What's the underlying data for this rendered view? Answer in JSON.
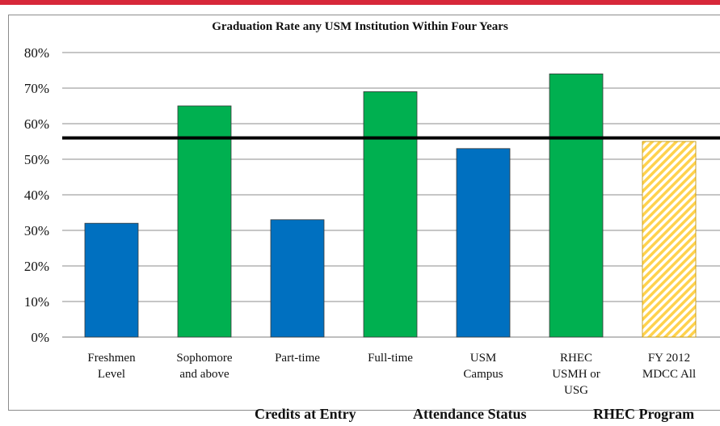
{
  "chart_data": {
    "type": "bar",
    "title": "Graduation Rate any USM Institution Within Four Years",
    "categories": [
      [
        "Freshmen",
        "Level"
      ],
      [
        "Sophomore",
        "and above"
      ],
      [
        "Part-time"
      ],
      [
        "Full-time"
      ],
      [
        "USM",
        "Campus"
      ],
      [
        "RHEC",
        "USMH or",
        "USG"
      ],
      [
        "FY 2012",
        "MDCC All"
      ]
    ],
    "values": [
      0.32,
      0.65,
      0.33,
      0.69,
      0.53,
      0.74,
      0.55
    ],
    "bar_colors": [
      "#0070c0",
      "#00b050",
      "#0070c0",
      "#00b050",
      "#0070c0",
      "#00b050",
      "#ffd966-hatched"
    ],
    "reference_line": 0.56,
    "ylim": [
      0,
      0.8
    ],
    "yticks": [
      "0%",
      "10%",
      "20%",
      "30%",
      "40%",
      "50%",
      "60%",
      "70%",
      "80%"
    ],
    "grid": true,
    "groups": [
      "Credits at Entry",
      "Attendance Status",
      "RHEC Program"
    ]
  },
  "colors": {
    "blue": "#0070c0",
    "green": "#00b050",
    "yellow": "#ffd24d",
    "accent_bar": "#d7283a"
  }
}
